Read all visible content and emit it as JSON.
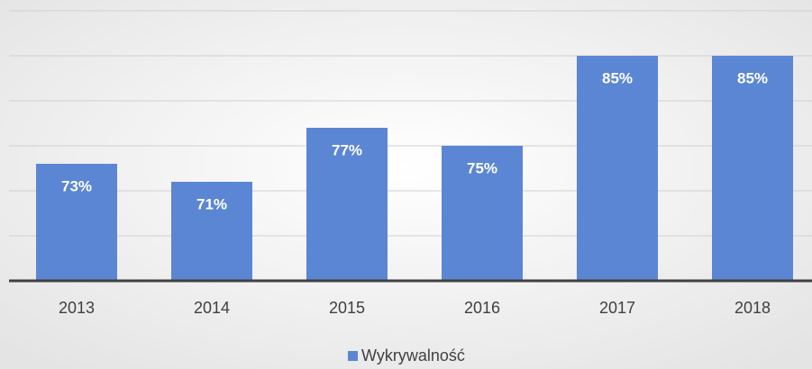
{
  "chart_data": {
    "type": "bar",
    "categories": [
      "2013",
      "2014",
      "2015",
      "2016",
      "2017",
      "2018"
    ],
    "series": [
      {
        "name": "Wykrywalność",
        "color": "#5b86d3",
        "values": [
          73,
          71,
          77,
          75,
          85,
          85
        ],
        "value_labels": [
          "73%",
          "71%",
          "77%",
          "75%",
          "85%",
          "85%"
        ]
      }
    ],
    "ylim": [
      60,
      90
    ],
    "yticks": [
      60,
      65,
      70,
      75,
      80,
      85,
      90
    ],
    "grid": true
  }
}
